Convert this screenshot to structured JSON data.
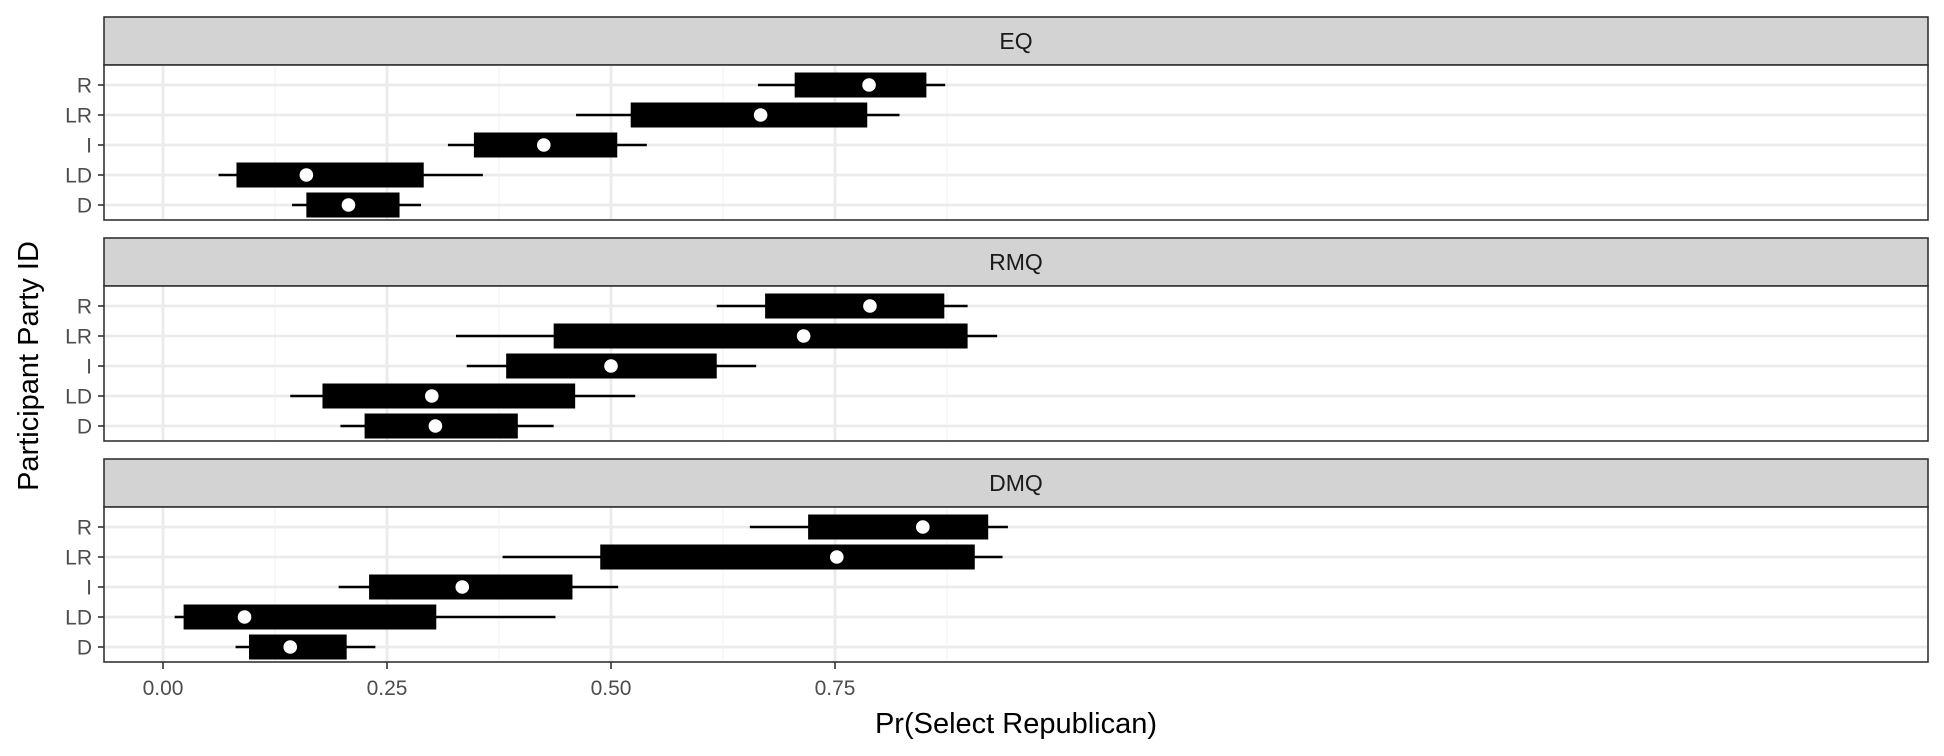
{
  "chart_data": {
    "type": "interval",
    "layout": "faceted-vertical",
    "xlabel": "Pr(Select Republican)",
    "ylabel": "Participant Party ID",
    "xlim": [
      -0.065,
      1.975
    ],
    "x_ticks": [
      0.0,
      0.25,
      0.5,
      0.75
    ],
    "x_tick_labels": [
      "0.00",
      "0.25",
      "0.50",
      "0.75"
    ],
    "categories": [
      "D",
      "LD",
      "I",
      "LR",
      "R"
    ],
    "grid": true,
    "colors": {
      "interval": "#000000",
      "point": "#ffffff",
      "strip": "#d3d3d3",
      "grid_major": "#ebebeb",
      "grid_minor": "#f5f5f5",
      "border": "#333333"
    },
    "panels": [
      {
        "name": "EQ",
        "rows": [
          {
            "party": "R",
            "lo": 0.664,
            "q1": 0.705,
            "point": 0.788,
            "q3": 0.852,
            "hi": 0.873
          },
          {
            "party": "LR",
            "lo": 0.461,
            "q1": 0.522,
            "point": 0.667,
            "q3": 0.786,
            "hi": 0.822
          },
          {
            "party": "I",
            "lo": 0.318,
            "q1": 0.347,
            "point": 0.425,
            "q3": 0.507,
            "hi": 0.54
          },
          {
            "party": "LD",
            "lo": 0.062,
            "q1": 0.082,
            "point": 0.16,
            "q3": 0.291,
            "hi": 0.357
          },
          {
            "party": "D",
            "lo": 0.144,
            "q1": 0.16,
            "point": 0.207,
            "q3": 0.264,
            "hi": 0.288
          }
        ]
      },
      {
        "name": "RMQ",
        "rows": [
          {
            "party": "R",
            "lo": 0.618,
            "q1": 0.672,
            "point": 0.789,
            "q3": 0.872,
            "hi": 0.898
          },
          {
            "party": "LR",
            "lo": 0.327,
            "q1": 0.436,
            "point": 0.715,
            "q3": 0.898,
            "hi": 0.931
          },
          {
            "party": "I",
            "lo": 0.339,
            "q1": 0.383,
            "point": 0.5,
            "q3": 0.618,
            "hi": 0.662
          },
          {
            "party": "LD",
            "lo": 0.142,
            "q1": 0.178,
            "point": 0.3,
            "q3": 0.46,
            "hi": 0.527
          },
          {
            "party": "D",
            "lo": 0.198,
            "q1": 0.225,
            "point": 0.304,
            "q3": 0.396,
            "hi": 0.436
          }
        ]
      },
      {
        "name": "DMQ",
        "rows": [
          {
            "party": "R",
            "lo": 0.655,
            "q1": 0.72,
            "point": 0.848,
            "q3": 0.921,
            "hi": 0.943
          },
          {
            "party": "LR",
            "lo": 0.379,
            "q1": 0.488,
            "point": 0.752,
            "q3": 0.906,
            "hi": 0.937
          },
          {
            "party": "I",
            "lo": 0.196,
            "q1": 0.23,
            "point": 0.334,
            "q3": 0.457,
            "hi": 0.508
          },
          {
            "party": "LD",
            "lo": 0.013,
            "q1": 0.023,
            "point": 0.091,
            "q3": 0.305,
            "hi": 0.438
          },
          {
            "party": "D",
            "lo": 0.081,
            "q1": 0.096,
            "point": 0.142,
            "q3": 0.205,
            "hi": 0.237
          }
        ]
      }
    ]
  }
}
